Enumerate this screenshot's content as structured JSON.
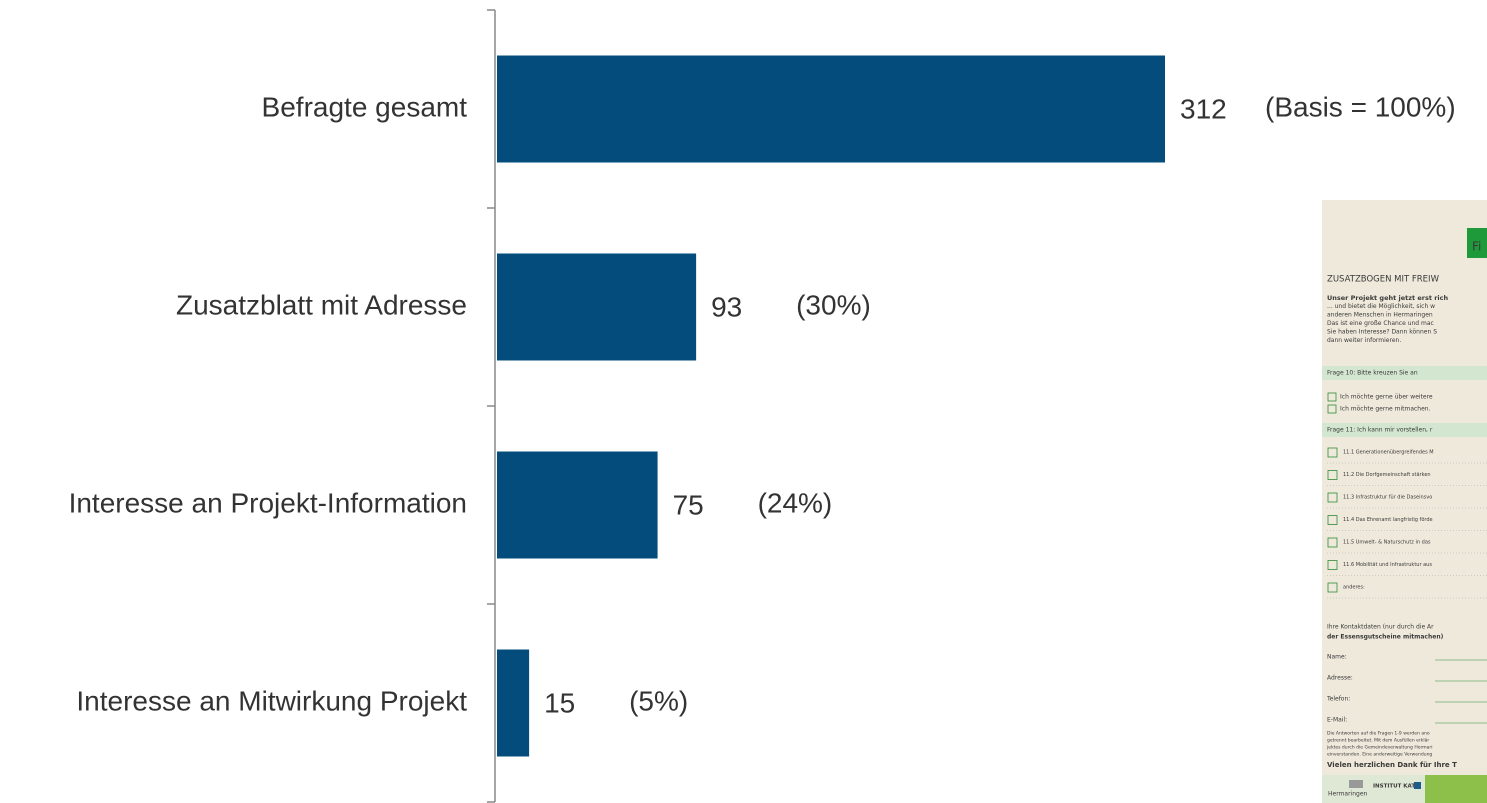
{
  "chart_data": {
    "type": "bar",
    "orientation": "horizontal",
    "categories": [
      "Befragte gesamt",
      "Zusatzblatt mit Adresse",
      "Interesse an Projekt-Information",
      "Interesse an Mitwirkung Projekt"
    ],
    "values": [
      312,
      93,
      75,
      15
    ],
    "annotations": [
      "(Basis = 100%)",
      "(30%)",
      "(24%)",
      "(5%)"
    ],
    "color": "#044c7c"
  },
  "document": {
    "badge": "Fi",
    "heading": "ZUSATZBOGEN MIT FREIW",
    "intro": [
      "Unser Projekt geht jetzt erst rich",
      "... und bietet die Möglichkeit, sich w",
      "anderen Menschen in Hermaringen",
      "Das ist eine große Chance und mac",
      "Sie haben Interesse? Dann können S",
      "dann weiter informieren."
    ],
    "question10": "Frage 10: Bitte kreuzen Sie an",
    "checks10": [
      "Ich möchte gerne über weitere",
      "Ich möchte gerne mitmachen."
    ],
    "question11": "Frage 11: Ich kann mir vorstellen, r",
    "options11": [
      "11.1 Generationenübergreifendes M",
      "11.2 Die Dorfgemeinschaft stärken",
      "11.3 Infrastruktur für die Daseinsvo",
      "11.4 Das Ehrenamt langfristig förde",
      "11.5 Umwelt- & Naturschutz in das",
      "11.6 Mobilität und Infrastruktur aus",
      "anderes:"
    ],
    "contact": [
      "Ihre Kontaktdaten (nur durch die Ar",
      "der Essensgutscheine mitmachen)"
    ],
    "fields": [
      "Name:",
      "Adresse:",
      "Telefon:",
      "E-Mail:"
    ],
    "fineprint": [
      "Die Antworten auf die Fragen 1-9 werden ano",
      "getrennt bearbeitet. Mit dem Ausfüllen erklär",
      "jektes durch die Gemeindeverwaltung Hermari",
      "einverstanden. Eine anderweitige Verwendung"
    ],
    "closing": "Vielen herzlichen Dank für Ihre T",
    "footer": [
      "Hermaringen",
      "INSTITUT KATZ"
    ]
  }
}
